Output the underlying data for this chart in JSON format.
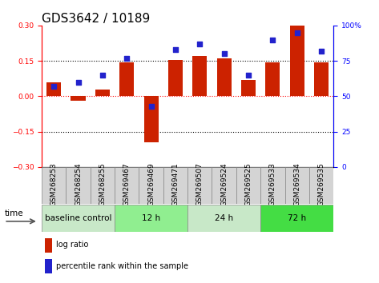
{
  "title": "GDS3642 / 10189",
  "samples": [
    "GSM268253",
    "GSM268254",
    "GSM268255",
    "GSM269467",
    "GSM269469",
    "GSM269471",
    "GSM269507",
    "GSM269524",
    "GSM269525",
    "GSM269533",
    "GSM269534",
    "GSM269535"
  ],
  "log_ratio": [
    0.06,
    -0.02,
    0.03,
    0.145,
    -0.195,
    0.155,
    0.17,
    0.16,
    0.07,
    0.145,
    0.3,
    0.145
  ],
  "percentile_rank": [
    57,
    60,
    65,
    77,
    43,
    83,
    87,
    80,
    65,
    90,
    95,
    82
  ],
  "groups": [
    {
      "label": "baseline control",
      "start": 0,
      "end": 3,
      "color": "#c8e8c8"
    },
    {
      "label": "12 h",
      "start": 3,
      "end": 6,
      "color": "#90ee90"
    },
    {
      "label": "24 h",
      "start": 6,
      "end": 9,
      "color": "#c8e8c8"
    },
    {
      "label": "72 h",
      "start": 9,
      "end": 12,
      "color": "#44dd44"
    }
  ],
  "bar_color": "#cc2200",
  "dot_color": "#2222cc",
  "ylim_left": [
    -0.3,
    0.3
  ],
  "ylim_right": [
    0,
    100
  ],
  "yticks_left": [
    -0.3,
    -0.15,
    0,
    0.15,
    0.3
  ],
  "yticks_right": [
    0,
    25,
    50,
    75,
    100
  ],
  "ytick_labels_right": [
    "0",
    "25",
    "50",
    "75",
    "100%"
  ],
  "hlines": [
    -0.15,
    0.15
  ],
  "title_fontsize": 11,
  "tick_fontsize": 6.5,
  "label_fontsize": 7.5,
  "group_label_fontsize": 7.5,
  "legend_fontsize": 7,
  "bar_width": 0.6
}
